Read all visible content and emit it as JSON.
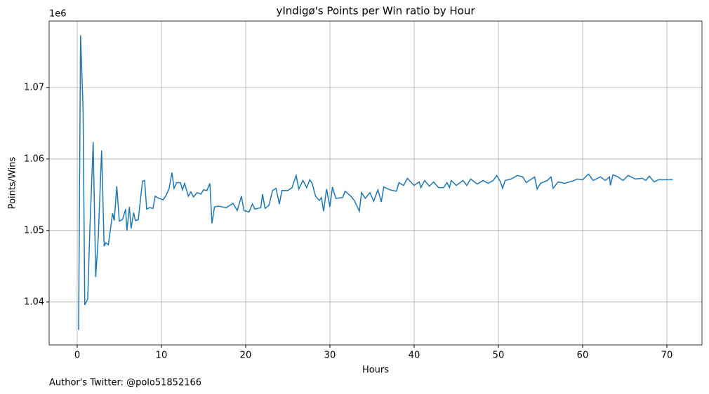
{
  "chart_data": {
    "type": "line",
    "title": "yIndigø's Points per Win ratio by Hour",
    "x_label": "Hours",
    "y_label": "Points/Wins",
    "y_offset_label": "1e6",
    "footer": "Author's Twitter: @polo51852166",
    "x": [
      0.17,
      0.4,
      0.7,
      0.9,
      1.25,
      1.5,
      1.9,
      2.2,
      2.5,
      2.9,
      3.2,
      3.4,
      3.7,
      4.2,
      4.4,
      4.7,
      5,
      5.4,
      5.75,
      5.9,
      6.2,
      6.4,
      6.7,
      6.9,
      7.25,
      7.75,
      8,
      8.25,
      8.6,
      9,
      9.25,
      9.7,
      10.2,
      10.5,
      10.9,
      11.25,
      11.5,
      11.8,
      12.25,
      12.5,
      12.75,
      13.2,
      13.5,
      13.8,
      14.25,
      14.7,
      15,
      15.4,
      15.75,
      16,
      16.3,
      16.8,
      17.7,
      18.5,
      19,
      19.5,
      19.8,
      20.4,
      20.8,
      21.1,
      21.8,
      22,
      22.3,
      22.75,
      23.2,
      23.6,
      24,
      24.3,
      25,
      25.5,
      26,
      26.3,
      26.8,
      27.25,
      27.6,
      27.9,
      28.3,
      28.75,
      29,
      29.25,
      29.6,
      30,
      30.3,
      30.7,
      31.5,
      31.8,
      32.5,
      32.9,
      33.5,
      33.75,
      34.2,
      34.75,
      35.2,
      35.7,
      36.1,
      36.4,
      37.1,
      37.9,
      38.2,
      38.75,
      39.2,
      40,
      40.6,
      40.8,
      41.25,
      41.8,
      42.3,
      42.9,
      43.5,
      43.9,
      44.2,
      44.4,
      45,
      45.8,
      46.25,
      46.7,
      47.5,
      48.2,
      48.75,
      49.4,
      49.8,
      50.25,
      50.5,
      50.8,
      51.5,
      52.25,
      52.9,
      53.3,
      54.3,
      54.6,
      55,
      55.8,
      56.25,
      56.5,
      57.1,
      57.9,
      58.75,
      59.4,
      60,
      60.7,
      61.25,
      62.1,
      62.7,
      63.2,
      63.3,
      63.6,
      64.2,
      64.8,
      65.4,
      66.25,
      67.1,
      67.5,
      67.9,
      68.5,
      69,
      70.7
    ],
    "series": [
      {
        "color": "#1f77b4",
        "values": [
          1.0361,
          1.0773,
          1.067,
          1.0396,
          1.0404,
          1.05,
          1.0624,
          1.0435,
          1.049,
          1.0612,
          1.0478,
          1.0483,
          1.048,
          1.0524,
          1.0514,
          1.0562,
          1.0513,
          1.0516,
          1.053,
          1.05,
          1.0533,
          1.0503,
          1.0525,
          1.0514,
          1.0515,
          1.0569,
          1.057,
          1.053,
          1.0532,
          1.0531,
          1.0548,
          1.0545,
          1.0543,
          1.0548,
          1.0558,
          1.0581,
          1.0559,
          1.0567,
          1.0567,
          1.0557,
          1.0566,
          1.0548,
          1.0554,
          1.0547,
          1.0553,
          1.0551,
          1.0557,
          1.0556,
          1.0566,
          1.051,
          1.0533,
          1.0534,
          1.0532,
          1.0538,
          1.0528,
          1.0548,
          1.0528,
          1.0526,
          1.0537,
          1.053,
          1.0532,
          1.0551,
          1.0531,
          1.0535,
          1.0556,
          1.0559,
          1.0537,
          1.0556,
          1.0556,
          1.056,
          1.0577,
          1.0558,
          1.057,
          1.056,
          1.0571,
          1.0566,
          1.0548,
          1.0542,
          1.0546,
          1.0527,
          1.0558,
          1.0533,
          1.0561,
          1.0545,
          1.0546,
          1.0555,
          1.0548,
          1.0542,
          1.0527,
          1.0553,
          1.0545,
          1.0553,
          1.0541,
          1.0557,
          1.054,
          1.0561,
          1.0557,
          1.0555,
          1.0567,
          1.0563,
          1.0573,
          1.0563,
          1.0568,
          1.056,
          1.057,
          1.0562,
          1.0568,
          1.056,
          1.056,
          1.0567,
          1.056,
          1.057,
          1.0563,
          1.057,
          1.0563,
          1.0572,
          1.0565,
          1.057,
          1.0566,
          1.057,
          1.0577,
          1.0568,
          1.0559,
          1.057,
          1.0572,
          1.0577,
          1.0575,
          1.0567,
          1.0575,
          1.0558,
          1.0566,
          1.057,
          1.0575,
          1.0559,
          1.0568,
          1.0566,
          1.0569,
          1.0572,
          1.0571,
          1.0579,
          1.057,
          1.0575,
          1.057,
          1.0575,
          1.0563,
          1.0578,
          1.0575,
          1.057,
          1.0577,
          1.0572,
          1.0573,
          1.057,
          1.0576,
          1.0568,
          1.0571,
          1.0571
        ]
      }
    ],
    "xlim": [
      -3.33,
      74.17
    ],
    "xticks": [
      0,
      10,
      20,
      30,
      40,
      50,
      60,
      70
    ],
    "ylim": [
      1.034,
      1.0793
    ],
    "yticks": [
      1.04,
      1.05,
      1.06,
      1.07
    ],
    "grid": true
  }
}
